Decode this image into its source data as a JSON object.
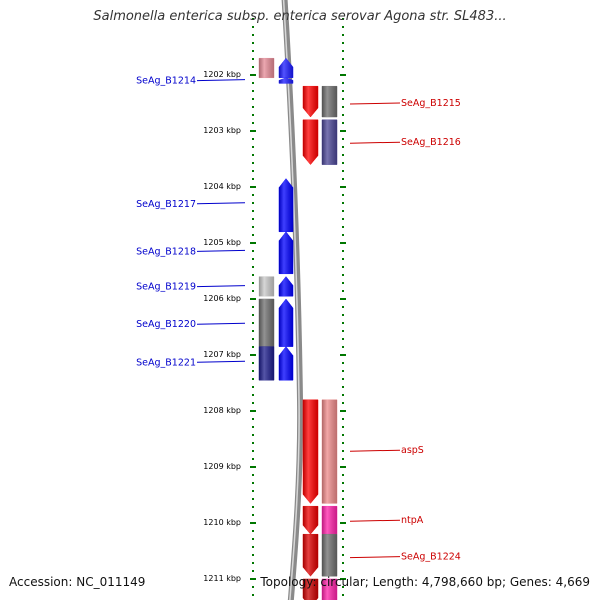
{
  "title": "Salmonella enterica subsp. enterica serovar Agona str. SL483...",
  "footer": {
    "accession": "Accession: NC_011149",
    "topology": "Topology: circular; Length: 4,798,660 bp; Genes: 4,669"
  },
  "chart_data": {
    "type": "genome-map",
    "axis": {
      "unit": "kbp",
      "range_kbp": [
        1201.9,
        1211.4
      ],
      "ticks": [
        {
          "kbp": 1202,
          "label": "1202 kbp"
        },
        {
          "kbp": 1203,
          "label": "1203 kbp"
        },
        {
          "kbp": 1204,
          "label": "1204 kbp"
        },
        {
          "kbp": 1205,
          "label": "1205 kbp"
        },
        {
          "kbp": 1206,
          "label": "1206 kbp"
        },
        {
          "kbp": 1207,
          "label": "1207 kbp"
        },
        {
          "kbp": 1208,
          "label": "1208 kbp"
        },
        {
          "kbp": 1209,
          "label": "1209 kbp"
        },
        {
          "kbp": 1210,
          "label": "1210 kbp"
        },
        {
          "kbp": 1211,
          "label": "1211 kbp"
        }
      ]
    },
    "colors": {
      "forward_label": "#0000cc",
      "reverse_label": "#cc0000",
      "tick": "#007700",
      "backbone": "#8a8a8a"
    },
    "labels": [
      {
        "text": "SeAg_B1214",
        "side": "left",
        "kbp": 1202.1
      },
      {
        "text": "SeAg_B1217",
        "side": "left",
        "kbp": 1204.3
      },
      {
        "text": "SeAg_B1218",
        "side": "left",
        "kbp": 1205.15
      },
      {
        "text": "SeAg_B1219",
        "side": "left",
        "kbp": 1205.78
      },
      {
        "text": "SeAg_B1220",
        "side": "left",
        "kbp": 1206.45
      },
      {
        "text": "SeAg_B1221",
        "side": "left",
        "kbp": 1207.13
      },
      {
        "text": "SeAg_B1215",
        "side": "right",
        "kbp": 1202.5
      },
      {
        "text": "SeAg_B1216",
        "side": "right",
        "kbp": 1203.2
      },
      {
        "text": "aspS",
        "side": "right",
        "kbp": 1208.7
      },
      {
        "text": "ntpA",
        "side": "right",
        "kbp": 1209.95
      },
      {
        "text": "SeAg_B1224",
        "side": "right",
        "kbp": 1210.6
      }
    ],
    "features": [
      {
        "track": "fwd-outer",
        "start": 1201.7,
        "end": 1202.05,
        "strand": "+",
        "color": "#e58a96"
      },
      {
        "track": "fwd",
        "start": 1201.7,
        "end": 1202.05,
        "strand": "+",
        "color": "#1a1aff"
      },
      {
        "track": "fwd",
        "start": 1202.05,
        "end": 1202.15,
        "strand": "+",
        "color": "#1a1aff"
      },
      {
        "track": "fwd",
        "start": 1203.85,
        "end": 1204.8,
        "strand": "+",
        "color": "#0000ff"
      },
      {
        "track": "fwd",
        "start": 1204.8,
        "end": 1205.55,
        "strand": "+",
        "color": "#0000ff"
      },
      {
        "track": "fwd",
        "start": 1205.6,
        "end": 1205.95,
        "strand": "+",
        "color": "#0000ff"
      },
      {
        "track": "fwd",
        "start": 1206.0,
        "end": 1206.85,
        "strand": "+",
        "color": "#0000ff"
      },
      {
        "track": "fwd",
        "start": 1206.85,
        "end": 1207.45,
        "strand": "+",
        "color": "#0000ff"
      },
      {
        "track": "fwd-outer",
        "start": 1205.6,
        "end": 1205.95,
        "strand": "+",
        "color": "#c8c8c8"
      },
      {
        "track": "fwd-outer",
        "start": 1206.0,
        "end": 1206.85,
        "strand": "+",
        "color": "#6e6e6e"
      },
      {
        "track": "fwd-outer",
        "start": 1206.85,
        "end": 1207.45,
        "strand": "+",
        "color": "#1c1c8a"
      },
      {
        "track": "rev",
        "start": 1202.2,
        "end": 1202.75,
        "strand": "-",
        "color": "#ff0000"
      },
      {
        "track": "rev",
        "start": 1202.8,
        "end": 1203.6,
        "strand": "-",
        "color": "#ff0000"
      },
      {
        "track": "rev-outer",
        "start": 1202.2,
        "end": 1202.75,
        "strand": "-",
        "color": "#6e6e6e"
      },
      {
        "track": "rev-outer",
        "start": 1202.8,
        "end": 1203.6,
        "strand": "-",
        "color": "#4b4696"
      },
      {
        "track": "rev",
        "start": 1207.8,
        "end": 1209.65,
        "strand": "-",
        "color": "#ff0000"
      },
      {
        "track": "rev-outer",
        "start": 1207.8,
        "end": 1209.65,
        "strand": "-",
        "color": "#ee8a8a"
      },
      {
        "track": "rev",
        "start": 1209.7,
        "end": 1210.2,
        "strand": "-",
        "color": "#ee0000"
      },
      {
        "track": "rev-outer",
        "start": 1209.7,
        "end": 1210.2,
        "strand": "-",
        "color": "#ff22aa"
      },
      {
        "track": "rev",
        "start": 1210.2,
        "end": 1210.95,
        "strand": "-",
        "color": "#dd0000"
      },
      {
        "track": "rev-outer",
        "start": 1210.2,
        "end": 1210.95,
        "strand": "-",
        "color": "#6e6e6e"
      },
      {
        "track": "rev",
        "start": 1211.0,
        "end": 1211.5,
        "strand": "-",
        "color": "#cc0000"
      },
      {
        "track": "rev-outer",
        "start": 1211.0,
        "end": 1211.5,
        "strand": "-",
        "color": "#ff22aa"
      }
    ]
  }
}
